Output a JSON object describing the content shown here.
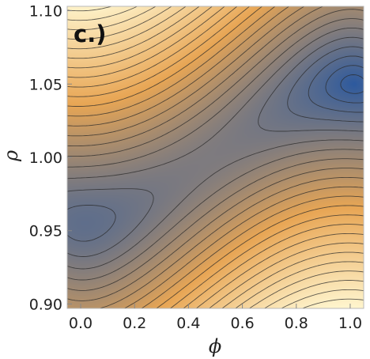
{
  "chart_data": {
    "type": "contour",
    "panel_label": "c.)",
    "xlabel": "ϕ",
    "ylabel": "ρ",
    "xlim": [
      -0.05,
      1.05
    ],
    "ylim": [
      0.897,
      1.103
    ],
    "x_ticks": [
      0.0,
      0.2,
      0.4,
      0.6,
      0.8,
      1.0
    ],
    "x_tick_labels": [
      "0.0",
      "0.2",
      "0.4",
      "0.6",
      "0.8",
      "1.0"
    ],
    "y_ticks": [
      0.9,
      0.95,
      1.0,
      1.05,
      1.1
    ],
    "y_tick_labels": [
      "0.90",
      "0.95",
      "1.00",
      "1.05",
      "1.10"
    ],
    "minima": [
      {
        "phi": 0.0,
        "rho": 0.955
      },
      {
        "phi": 1.0,
        "rho": 1.05
      }
    ],
    "saddle": {
      "phi": 0.47,
      "rho": 0.995
    },
    "colormap": {
      "low": "#2e5a9e",
      "mid": "#e8a655",
      "high": "#fff6cf"
    },
    "contour_count": 24
  }
}
